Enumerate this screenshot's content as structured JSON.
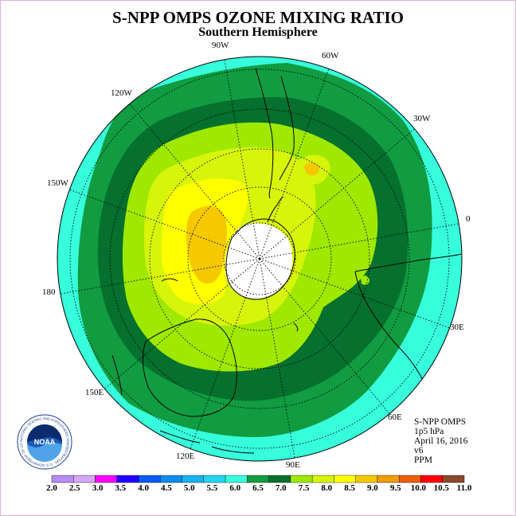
{
  "header": {
    "title": "S-NPP OMPS OZONE MIXING RATIO",
    "subtitle": "Southern Hemisphere"
  },
  "map": {
    "projection": "south-polar-stereographic",
    "longitude_labels": [
      "90W",
      "60W",
      "30W",
      "0",
      "30E",
      "60E",
      "90E",
      "120E",
      "150E",
      "180",
      "150W",
      "120W"
    ],
    "band_colors": {
      "outer": "#37ffdc",
      "ring_6_0": "#119c41",
      "ring_6_5": "#06702e",
      "ring_7_0": "#9fe800",
      "ring_7_5": "#d6f50a",
      "ring_8_0": "#ffff00",
      "ring_8_5": "#f5c800",
      "pole_nodata": "#ffffff"
    }
  },
  "info": {
    "line1": "S-NPP OMPS",
    "line2": "1p5 hPa",
    "line3": "April 16, 2016",
    "line4": "v6",
    "line5": "PPM"
  },
  "logo": {
    "text": "NOAA",
    "ring_text": "NATIONAL OCEANIC AND ATMOSPHERIC ADMINISTRATION · U.S. DEPARTMENT OF COMMERCE"
  },
  "colorbar": {
    "ticks": [
      "2.0",
      "2.5",
      "3.0",
      "3.5",
      "4.0",
      "4.5",
      "5.0",
      "5.5",
      "6.0",
      "6.5",
      "7.0",
      "7.5",
      "8.0",
      "8.5",
      "9.0",
      "9.5",
      "10.0",
      "10.5",
      "11.0"
    ],
    "colors": [
      "#b58bf5",
      "#d6a8f3",
      "#ff00ff",
      "#2000ff",
      "#0a5bf3",
      "#0c8ef0",
      "#19b2ef",
      "#25d5f2",
      "#37ffdc",
      "#119c41",
      "#06702e",
      "#9fe800",
      "#d6f50a",
      "#ffff00",
      "#f5c800",
      "#f09b00",
      "#ef5f00",
      "#ff0000",
      "#8b4a2b"
    ]
  }
}
